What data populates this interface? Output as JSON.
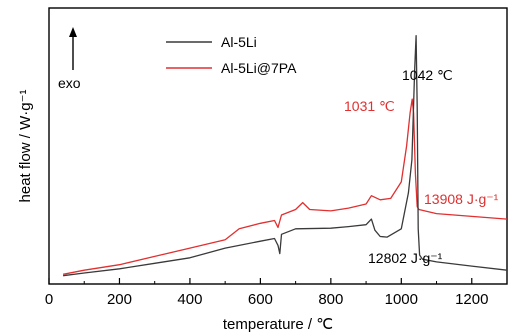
{
  "chart_data": {
    "type": "line",
    "title": "",
    "xlabel": "temperature / ℃",
    "ylabel": "heat flow / W·g⁻¹",
    "xlim": [
      0,
      1300
    ],
    "xticks": [
      0,
      200,
      400,
      600,
      800,
      1000,
      1200
    ],
    "x_tick_labels": [
      "0",
      "200",
      "400",
      "600",
      "800",
      "1000",
      "1200"
    ],
    "ylim": [
      0,
      100
    ],
    "y_ticks_shown": false,
    "grid": false,
    "legend_position": "top-left",
    "exo_label": "exo",
    "series": [
      {
        "name": "Al-5Li",
        "color": "#3a3a3a",
        "points": [
          [
            40,
            3.0
          ],
          [
            100,
            4.0
          ],
          [
            200,
            5.5
          ],
          [
            300,
            7.5
          ],
          [
            400,
            9.5
          ],
          [
            500,
            13.0
          ],
          [
            600,
            15.5
          ],
          [
            640,
            16.5
          ],
          [
            650,
            14.0
          ],
          [
            655,
            11.0
          ],
          [
            660,
            18.0
          ],
          [
            700,
            20.0
          ],
          [
            800,
            20.2
          ],
          [
            850,
            20.8
          ],
          [
            900,
            21.5
          ],
          [
            915,
            23.5
          ],
          [
            925,
            19.5
          ],
          [
            940,
            17.2
          ],
          [
            960,
            17.0
          ],
          [
            1000,
            20.0
          ],
          [
            1020,
            33.0
          ],
          [
            1030,
            45.0
          ],
          [
            1038,
            78.0
          ],
          [
            1042,
            90.0
          ],
          [
            1045,
            64.0
          ],
          [
            1048,
            20.0
          ],
          [
            1052,
            10.5
          ],
          [
            1060,
            9.0
          ],
          [
            1100,
            8.0
          ],
          [
            1200,
            6.5
          ],
          [
            1300,
            5.0
          ]
        ]
      },
      {
        "name": "Al-5Li@7PA",
        "color": "#e03030",
        "points": [
          [
            40,
            3.5
          ],
          [
            100,
            5.0
          ],
          [
            200,
            7.0
          ],
          [
            300,
            10.0
          ],
          [
            400,
            13.0
          ],
          [
            500,
            16.0
          ],
          [
            540,
            20.0
          ],
          [
            600,
            22.0
          ],
          [
            640,
            23.0
          ],
          [
            650,
            20.5
          ],
          [
            660,
            25.0
          ],
          [
            700,
            27.0
          ],
          [
            720,
            29.5
          ],
          [
            740,
            27.0
          ],
          [
            800,
            26.5
          ],
          [
            850,
            27.5
          ],
          [
            900,
            29.0
          ],
          [
            915,
            32.0
          ],
          [
            940,
            30.5
          ],
          [
            970,
            31.0
          ],
          [
            1000,
            37.0
          ],
          [
            1015,
            50.0
          ],
          [
            1025,
            62.0
          ],
          [
            1031,
            67.0
          ],
          [
            1035,
            62.0
          ],
          [
            1040,
            40.0
          ],
          [
            1045,
            28.0
          ],
          [
            1050,
            27.0
          ],
          [
            1100,
            25.5
          ],
          [
            1200,
            24.5
          ],
          [
            1300,
            23.5
          ]
        ]
      }
    ],
    "annotations": [
      {
        "text": "1042 ℃",
        "color": "#000000"
      },
      {
        "text": "1031 ℃",
        "color": "#e03030"
      },
      {
        "text": "13908 J·g⁻¹",
        "color": "#e03030"
      },
      {
        "text": "12802 J·g⁻¹",
        "color": "#000000"
      }
    ]
  }
}
